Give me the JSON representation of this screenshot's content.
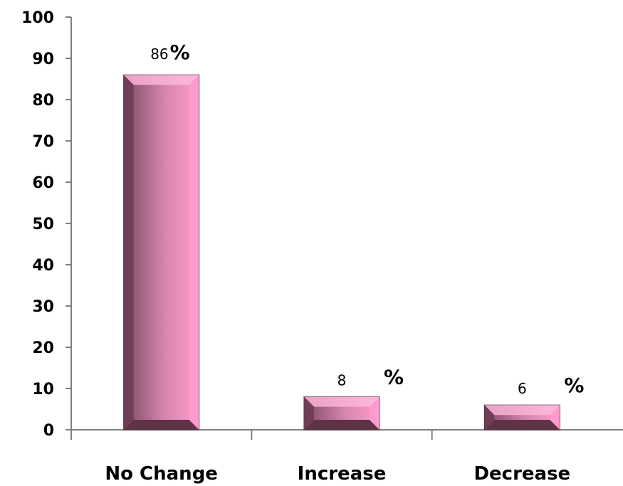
{
  "chart_data": {
    "type": "bar",
    "categories": [
      "No Change",
      "Increase",
      "Decrease"
    ],
    "values": [
      86,
      8,
      6
    ],
    "value_labels": [
      "86",
      "8",
      "6"
    ],
    "value_unit": "%",
    "title": "",
    "xlabel": "",
    "ylabel": "",
    "ylim": [
      0,
      100
    ],
    "yticks": [
      "0",
      "10",
      "20",
      "30",
      "40",
      "50",
      "60",
      "70",
      "80",
      "90",
      "100"
    ],
    "grid": false,
    "legend": "none",
    "bar_colors": {
      "face": "#c97ba0",
      "highlight": "#ff9ccd",
      "dark": "#5e3348",
      "edge": "#3d2230"
    }
  }
}
